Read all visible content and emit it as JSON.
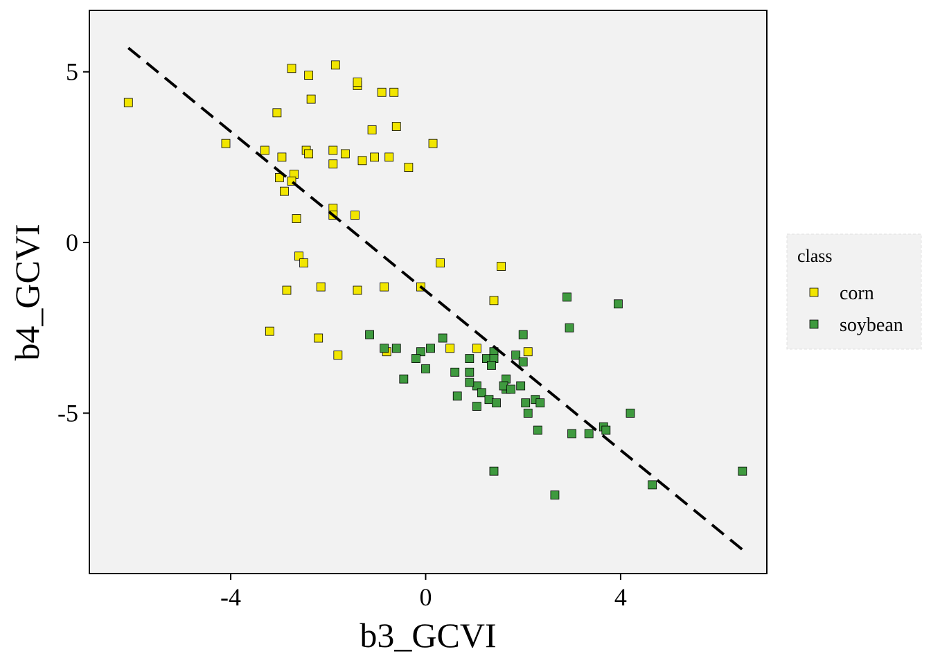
{
  "chart_data": {
    "type": "scatter",
    "xlabel": "b3_GCVI",
    "ylabel": "b4_GCVI",
    "xlim": [
      -6.9,
      7.0
    ],
    "ylim": [
      -9.7,
      6.8
    ],
    "xticks": [
      -4,
      0,
      4
    ],
    "yticks": [
      5,
      0,
      -5
    ],
    "xtick_labels": [
      "-4",
      "0",
      "4"
    ],
    "ytick_labels": [
      "5",
      "0",
      "-5"
    ],
    "grid": false,
    "panel_background": "#f2f2f2",
    "legend": {
      "title": "class",
      "placement": "right"
    },
    "series": [
      {
        "name": "corn",
        "color": "#f2e600",
        "marker": "square",
        "points": [
          [
            -6.1,
            4.1
          ],
          [
            -4.1,
            2.9
          ],
          [
            -3.3,
            2.7
          ],
          [
            -3.05,
            3.8
          ],
          [
            -2.75,
            5.1
          ],
          [
            -2.4,
            4.9
          ],
          [
            -2.35,
            4.2
          ],
          [
            -1.85,
            5.2
          ],
          [
            -1.4,
            4.6
          ],
          [
            -1.4,
            4.7
          ],
          [
            -0.9,
            4.4
          ],
          [
            -0.65,
            4.4
          ],
          [
            -1.1,
            3.3
          ],
          [
            -0.6,
            3.4
          ],
          [
            0.15,
            2.9
          ],
          [
            -2.45,
            2.7
          ],
          [
            -2.4,
            2.6
          ],
          [
            -1.9,
            2.7
          ],
          [
            -1.65,
            2.6
          ],
          [
            -1.3,
            2.4
          ],
          [
            -1.05,
            2.5
          ],
          [
            -0.75,
            2.5
          ],
          [
            -0.35,
            2.2
          ],
          [
            -2.95,
            2.5
          ],
          [
            -1.9,
            2.3
          ],
          [
            -2.7,
            2.0
          ],
          [
            -3.0,
            1.9
          ],
          [
            -2.75,
            1.8
          ],
          [
            -2.9,
            1.5
          ],
          [
            -1.9,
            1.0
          ],
          [
            -1.9,
            0.8
          ],
          [
            -1.45,
            0.8
          ],
          [
            -2.65,
            0.7
          ],
          [
            -2.6,
            -0.4
          ],
          [
            -2.5,
            -0.6
          ],
          [
            0.3,
            -0.6
          ],
          [
            1.55,
            -0.7
          ],
          [
            -2.85,
            -1.4
          ],
          [
            -2.15,
            -1.3
          ],
          [
            -1.4,
            -1.4
          ],
          [
            -0.85,
            -1.3
          ],
          [
            1.4,
            -1.7
          ],
          [
            -3.2,
            -2.6
          ],
          [
            -2.2,
            -2.8
          ],
          [
            -1.8,
            -3.3
          ],
          [
            -0.8,
            -3.2
          ],
          [
            0.5,
            -3.1
          ],
          [
            1.05,
            -3.1
          ],
          [
            2.1,
            -3.2
          ],
          [
            -0.1,
            -1.3
          ]
        ]
      },
      {
        "name": "soybean",
        "color": "#3f9a3f",
        "marker": "square",
        "points": [
          [
            2.9,
            -1.6
          ],
          [
            3.95,
            -1.8
          ],
          [
            2.95,
            -2.5
          ],
          [
            2.0,
            -2.7
          ],
          [
            0.35,
            -2.8
          ],
          [
            -1.15,
            -2.7
          ],
          [
            -0.85,
            -3.1
          ],
          [
            -0.6,
            -3.1
          ],
          [
            -0.1,
            -3.2
          ],
          [
            0.1,
            -3.1
          ],
          [
            -0.2,
            -3.4
          ],
          [
            0.0,
            -3.7
          ],
          [
            -0.45,
            -4.0
          ],
          [
            0.6,
            -3.8
          ],
          [
            0.9,
            -3.4
          ],
          [
            1.25,
            -3.4
          ],
          [
            1.4,
            -3.2
          ],
          [
            1.4,
            -3.4
          ],
          [
            1.35,
            -3.6
          ],
          [
            1.85,
            -3.3
          ],
          [
            2.0,
            -3.5
          ],
          [
            0.9,
            -3.8
          ],
          [
            1.05,
            -4.2
          ],
          [
            0.9,
            -4.1
          ],
          [
            1.15,
            -4.4
          ],
          [
            1.65,
            -4.0
          ],
          [
            1.65,
            -4.3
          ],
          [
            1.6,
            -4.2
          ],
          [
            1.75,
            -4.3
          ],
          [
            1.95,
            -4.2
          ],
          [
            0.65,
            -4.5
          ],
          [
            1.3,
            -4.6
          ],
          [
            1.45,
            -4.7
          ],
          [
            1.05,
            -4.8
          ],
          [
            2.05,
            -4.7
          ],
          [
            2.25,
            -4.6
          ],
          [
            2.35,
            -4.7
          ],
          [
            2.1,
            -5.0
          ],
          [
            4.2,
            -5.0
          ],
          [
            2.3,
            -5.5
          ],
          [
            3.0,
            -5.6
          ],
          [
            3.35,
            -5.6
          ],
          [
            3.65,
            -5.4
          ],
          [
            3.7,
            -5.5
          ],
          [
            1.4,
            -6.7
          ],
          [
            2.65,
            -7.4
          ],
          [
            4.65,
            -7.1
          ],
          [
            6.5,
            -6.7
          ]
        ]
      }
    ],
    "trend_line": {
      "style": "dashed",
      "color": "#000000",
      "from": [
        -6.1,
        5.7
      ],
      "to": [
        6.5,
        -9.0
      ]
    }
  }
}
